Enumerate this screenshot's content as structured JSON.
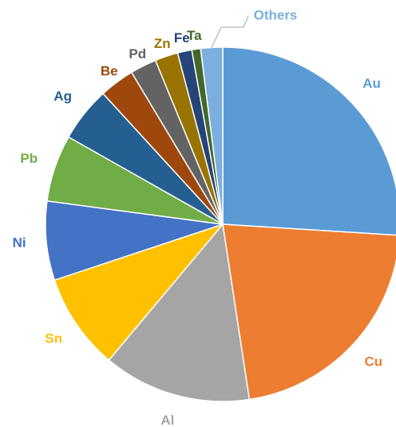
{
  "chart_data": {
    "type": "pie",
    "categories": [
      "Au",
      "Cu",
      "Al",
      "Sn",
      "Ni",
      "Pb",
      "Ag",
      "Be",
      "Pd",
      "Zn",
      "Fe",
      "Ta",
      "Others"
    ],
    "values": [
      26,
      21.6,
      13.5,
      8.8,
      7.2,
      6.1,
      5,
      3.2,
      2.4,
      2.1,
      1.3,
      0.8,
      2
    ],
    "colors": [
      "#5b9bd5",
      "#ed7d31",
      "#a5a5a5",
      "#ffc000",
      "#4472c4",
      "#70ad47",
      "#255e91",
      "#9e480e",
      "#636363",
      "#997300",
      "#264478",
      "#43682b",
      "#7cafdd"
    ]
  }
}
